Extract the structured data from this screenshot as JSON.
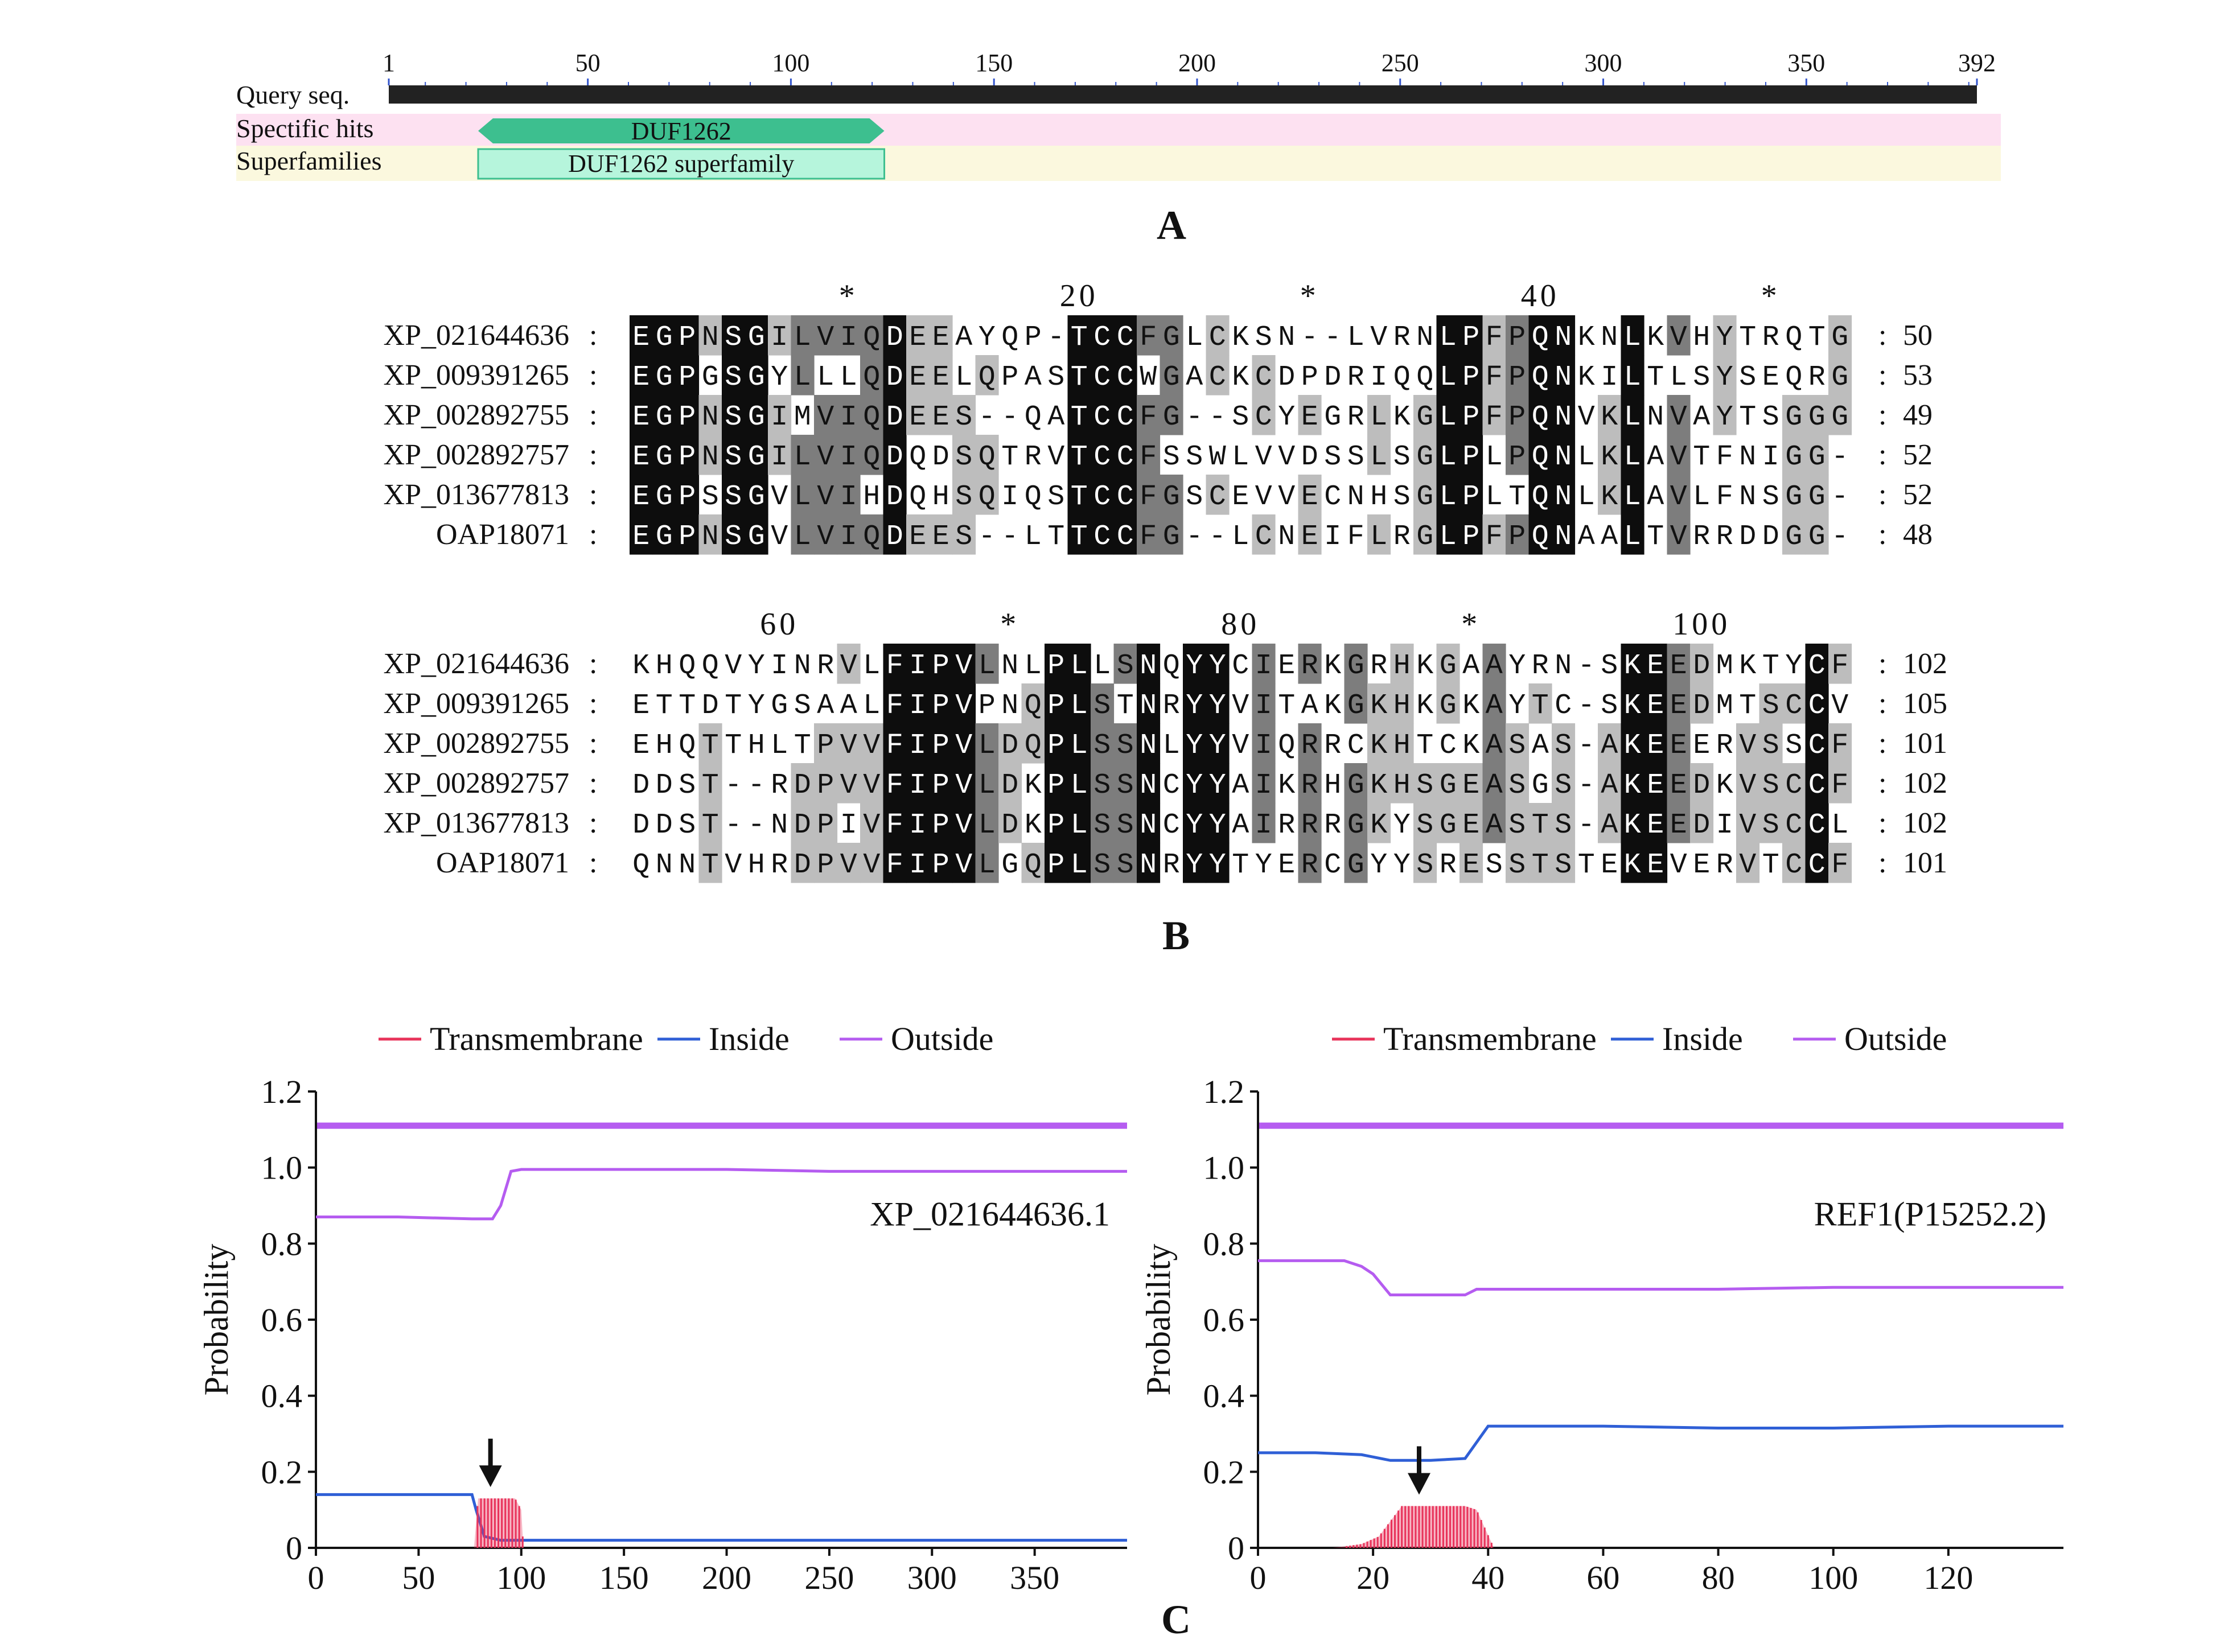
{
  "panel_a": {
    "label": "A",
    "row_labels": [
      "Query seq.",
      "Spectific hits",
      "Superfamilies"
    ],
    "ruler_ticks": [
      1,
      50,
      100,
      150,
      200,
      250,
      300,
      350,
      392
    ],
    "query_length": 392,
    "domain_hit": {
      "label": "DUF1262",
      "start": 23,
      "end": 123
    },
    "superfamily": {
      "label": "DUF1262 superfamily",
      "start": 23,
      "end": 123
    },
    "colors": {
      "hit": "#3dbf8f",
      "superfamily": "#b6f5dc",
      "hits_row_bg": "#fde1f1",
      "superfamily_row_bg": "#fbf8de",
      "query_bar": "#222222"
    }
  },
  "panel_b": {
    "label": "B",
    "blocks": [
      {
        "markers": [
          {
            "text": "*",
            "col": 10
          },
          {
            "text": "20",
            "col": 20
          },
          {
            "text": "*",
            "col": 30
          },
          {
            "text": "40",
            "col": 40
          },
          {
            "text": "*",
            "col": 50
          }
        ],
        "rows": [
          {
            "name": "XP_021644636",
            "seq": "EGPNSGILVIQDEEAYQP-TCCFGLCKSN--LVRNLPFPQNKNLKVHYTRQTG",
            "end": "50"
          },
          {
            "name": "XP_009391265",
            "seq": "EGPGSGYLLLQDEELQPASTCCWGACKCDPDRIQQLPFPQNKILTLSYSEQRG",
            "end": "53"
          },
          {
            "name": "XP_002892755",
            "seq": "EGPNSGIMVIQDEES--QATCCFG--SCYEGRLKGLPFPQNVKLNVAYTSGGG",
            "end": "49"
          },
          {
            "name": "XP_002892757",
            "seq": "EGPNSGILVIQDQDSQTRVTCCFSSWLVVDSSLSGLPLPQNLKLAVTFNIGG-",
            "end": "52"
          },
          {
            "name": "XP_013677813",
            "seq": "EGPSSGVLVIHDQHSQIQSTCCFGSCEVVECNHSGLPLTQNLKLAVLFNSGG-",
            "end": "52"
          },
          {
            "name": "OAP18071",
            "seq": "EGPNSGVLVIQDEES--LTTCCFG--LCNEIFLRGLPFPQNAALTVRRDDGG-",
            "end": "48"
          }
        ],
        "shade": [
          "2222220222222222000002222202000000222022222222200210000",
          "2222220222222222000002222202000000222022222222200210000",
          "2222220222222222000002222202000000222022222222200210000",
          "2222220222222222000002222202000000222022222222200210000",
          "2222220222222222000002222202000000222022222222200210000",
          "2222220222222222000002222202000000222022222222200210000"
        ]
      },
      {
        "markers": [
          {
            "text": "60",
            "col": 7
          },
          {
            "text": "*",
            "col": 17
          },
          {
            "text": "80",
            "col": 27
          },
          {
            "text": "*",
            "col": 37
          },
          {
            "text": "100",
            "col": 47
          }
        ],
        "rows": [
          {
            "name": "XP_021644636",
            "seq": "KHQQVYINRVLFIPVLNLPLLSNQYYCIERKGRHKGAAYRN-SKEEDMKTYCF",
            "end": "102"
          },
          {
            "name": "XP_009391265",
            "seq": "ETTDTYGSAALFIPVPNQPLSTNRYYVITAKGKHKGKAYTC-SKEEDMTSCCV",
            "end": "105"
          },
          {
            "name": "XP_002892755",
            "seq": "EHQTTHLTPVVFIPVLDQPLSSNLYYVIQRRCKHTCKASAS-AKEEERVSSCF",
            "end": "101"
          },
          {
            "name": "XP_002892757",
            "seq": "DDST--RDPVVFIPVLDKPLSSNCYYAIKRHGKHSGEASGS-AKEEDKVSCCF",
            "end": "102"
          },
          {
            "name": "XP_013677813",
            "seq": "DDST--NDPIVFIPVLDKPLSSNCYYAIRRRGKYSGEASTS-AKEEDIVSCCL",
            "end": "102"
          },
          {
            "name": "OAP18071",
            "seq": "QNNTVHRDPVVFIPVLGQPLSSNRYYTYERCGYYSRESSTSTEKEVERVTCCF",
            "end": "101"
          }
        ]
      }
    ],
    "colors": {
      "dark": "#0d0d0d",
      "mid": "#7d7d7d",
      "light": "#bdbdbd"
    }
  },
  "panel_c": {
    "label": "C",
    "legend": [
      {
        "name": "Transmembrane",
        "color": "#e8325a"
      },
      {
        "name": "Inside",
        "color": "#2f5fd6"
      },
      {
        "name": "Outside",
        "color": "#b55cf0"
      }
    ],
    "ylabel": "Probability",
    "y_ticks": [
      "0",
      "0.2",
      "0.4",
      "0.6",
      "0.8",
      "1.0",
      "1.2"
    ],
    "plots": [
      {
        "title": "XP_021644636.1",
        "x_ticks": [
          0,
          50,
          100,
          150,
          200,
          250,
          300,
          350
        ]
      },
      {
        "title": "REF1(P15252.2)",
        "x_ticks": [
          0,
          20,
          40,
          60,
          80,
          100,
          120
        ]
      }
    ]
  },
  "chart_data": [
    {
      "type": "line",
      "title": "XP_021644636.1",
      "xlabel": "",
      "ylabel": "Probability",
      "xlim": [
        0,
        395
      ],
      "ylim": [
        0,
        1.2
      ],
      "legend_position": "top",
      "series": [
        {
          "name": "Inside",
          "color": "#2f5fd6",
          "x": [
            0,
            76,
            78,
            82,
            90,
            100,
            150,
            200,
            250,
            300,
            350,
            395
          ],
          "y": [
            0.14,
            0.14,
            0.1,
            0.03,
            0.02,
            0.02,
            0.02,
            0.02,
            0.02,
            0.02,
            0.02,
            0.02
          ]
        },
        {
          "name": "Outside",
          "color": "#b55cf0",
          "x": [
            0,
            40,
            76,
            86,
            90,
            95,
            100,
            150,
            200,
            250,
            300,
            350,
            395
          ],
          "y": [
            0.87,
            0.87,
            0.865,
            0.865,
            0.9,
            0.99,
            0.995,
            0.995,
            0.995,
            0.99,
            0.99,
            0.99,
            0.99
          ]
        },
        {
          "name": "Transmembrane",
          "color": "#e8325a",
          "x": [
            77,
            79,
            80,
            97,
            100,
            101
          ],
          "y": [
            0.0,
            0.13,
            0.13,
            0.13,
            0.1,
            0.0
          ]
        }
      ],
      "reference_line": {
        "y": 1.11
      },
      "arrow_x": 85
    },
    {
      "type": "line",
      "title": "REF1(P15252.2)",
      "xlabel": "",
      "ylabel": "Probability",
      "xlim": [
        0,
        140
      ],
      "ylim": [
        0,
        1.2
      ],
      "legend_position": "top",
      "series": [
        {
          "name": "Inside",
          "color": "#2f5fd6",
          "x": [
            0,
            10,
            18,
            23,
            30,
            36,
            40,
            60,
            80,
            100,
            120,
            140
          ],
          "y": [
            0.25,
            0.25,
            0.245,
            0.23,
            0.23,
            0.235,
            0.32,
            0.32,
            0.315,
            0.315,
            0.32,
            0.32
          ]
        },
        {
          "name": "Outside",
          "color": "#b55cf0",
          "x": [
            0,
            15,
            18,
            20,
            23,
            30,
            36,
            38,
            60,
            80,
            100,
            120,
            140
          ],
          "y": [
            0.755,
            0.755,
            0.74,
            0.72,
            0.665,
            0.665,
            0.665,
            0.68,
            0.68,
            0.68,
            0.685,
            0.685,
            0.685
          ]
        },
        {
          "name": "Transmembrane",
          "color": "#e8325a",
          "x": [
            13,
            18,
            21,
            23,
            25,
            36,
            38,
            41,
            70,
            80
          ],
          "y": [
            0.0,
            0.01,
            0.03,
            0.07,
            0.11,
            0.11,
            0.1,
            0.0,
            0.0,
            0.0
          ]
        }
      ],
      "reference_line": {
        "y": 1.11
      },
      "arrow_x": 28
    }
  ]
}
